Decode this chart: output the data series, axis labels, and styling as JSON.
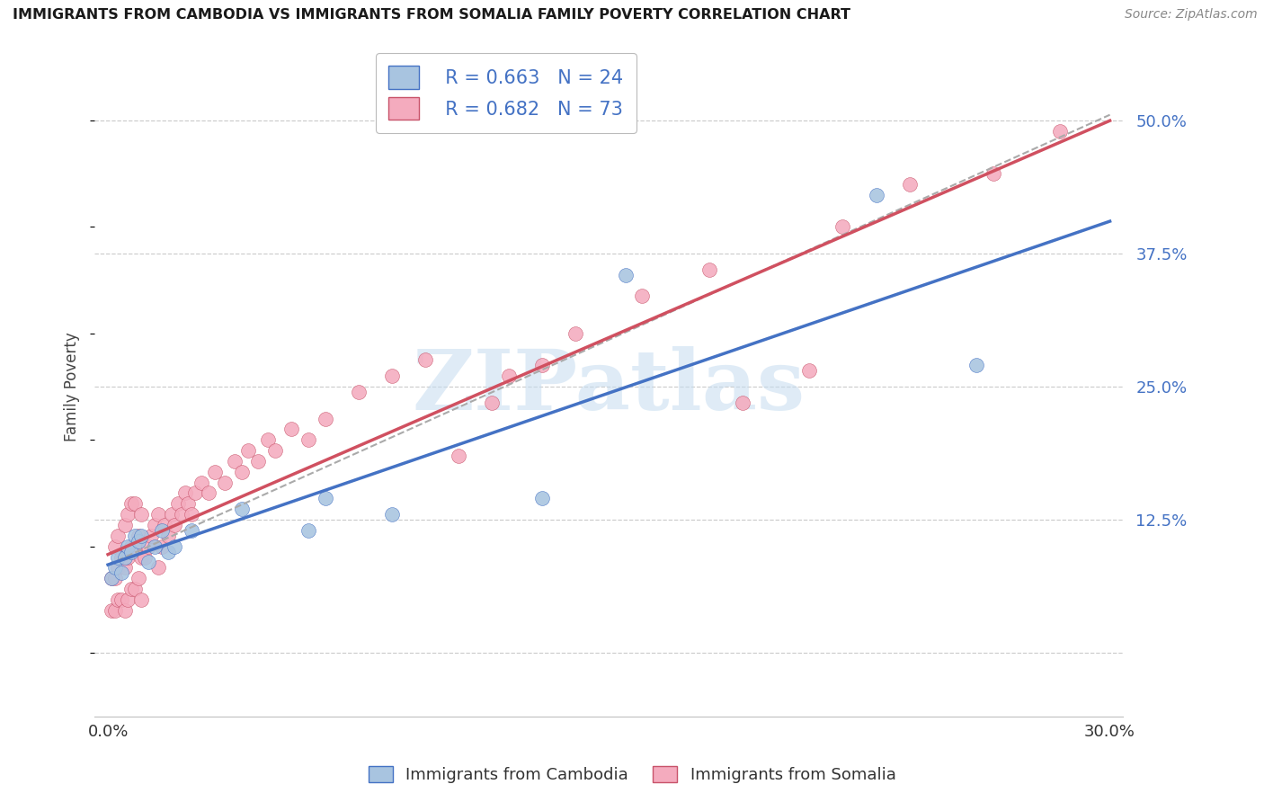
{
  "title": "IMMIGRANTS FROM CAMBODIA VS IMMIGRANTS FROM SOMALIA FAMILY POVERTY CORRELATION CHART",
  "source": "Source: ZipAtlas.com",
  "ylabel": "Family Poverty",
  "xlim": [
    0.0,
    0.3
  ],
  "ylim_lo": -0.06,
  "ylim_hi": 0.56,
  "ytick_values": [
    0.0,
    0.125,
    0.25,
    0.375,
    0.5
  ],
  "ytick_labels": [
    "",
    "12.5%",
    "25.0%",
    "37.5%",
    "50.0%"
  ],
  "legend_labels": [
    "Immigrants from Cambodia",
    "Immigrants from Somalia"
  ],
  "r_cambodia": 0.663,
  "n_cambodia": 24,
  "r_somalia": 0.682,
  "n_somalia": 73,
  "color_cambodia_fill": "#A8C4E0",
  "color_cambodia_edge": "#4472C4",
  "color_somalia_fill": "#F4ABBE",
  "color_somalia_edge": "#C8536A",
  "line_color_cambodia": "#4472C4",
  "line_color_somalia": "#D05060",
  "dash_line_color": "#AAAAAA",
  "watermark_text": "ZIPatlas",
  "watermark_color": "#C5DCF0",
  "cam_x": [
    0.001,
    0.002,
    0.003,
    0.004,
    0.005,
    0.006,
    0.007,
    0.008,
    0.009,
    0.01,
    0.012,
    0.014,
    0.016,
    0.018,
    0.02,
    0.025,
    0.04,
    0.06,
    0.065,
    0.085,
    0.13,
    0.155,
    0.23,
    0.26
  ],
  "cam_y": [
    0.07,
    0.08,
    0.09,
    0.075,
    0.09,
    0.1,
    0.095,
    0.11,
    0.105,
    0.11,
    0.085,
    0.1,
    0.115,
    0.095,
    0.1,
    0.115,
    0.135,
    0.115,
    0.145,
    0.13,
    0.145,
    0.355,
    0.43,
    0.27
  ],
  "som_x": [
    0.001,
    0.001,
    0.002,
    0.002,
    0.002,
    0.003,
    0.003,
    0.003,
    0.004,
    0.004,
    0.005,
    0.005,
    0.005,
    0.006,
    0.006,
    0.006,
    0.007,
    0.007,
    0.007,
    0.008,
    0.008,
    0.008,
    0.009,
    0.009,
    0.01,
    0.01,
    0.01,
    0.011,
    0.012,
    0.013,
    0.014,
    0.015,
    0.015,
    0.016,
    0.017,
    0.018,
    0.019,
    0.02,
    0.021,
    0.022,
    0.023,
    0.024,
    0.025,
    0.026,
    0.028,
    0.03,
    0.032,
    0.035,
    0.038,
    0.04,
    0.042,
    0.045,
    0.048,
    0.05,
    0.055,
    0.06,
    0.065,
    0.075,
    0.085,
    0.095,
    0.105,
    0.115,
    0.12,
    0.13,
    0.14,
    0.16,
    0.18,
    0.19,
    0.21,
    0.22,
    0.24,
    0.265,
    0.285
  ],
  "som_y": [
    0.04,
    0.07,
    0.04,
    0.07,
    0.1,
    0.05,
    0.08,
    0.11,
    0.05,
    0.09,
    0.04,
    0.08,
    0.12,
    0.05,
    0.09,
    0.13,
    0.06,
    0.1,
    0.14,
    0.06,
    0.1,
    0.14,
    0.07,
    0.11,
    0.05,
    0.09,
    0.13,
    0.09,
    0.1,
    0.11,
    0.12,
    0.08,
    0.13,
    0.1,
    0.12,
    0.11,
    0.13,
    0.12,
    0.14,
    0.13,
    0.15,
    0.14,
    0.13,
    0.15,
    0.16,
    0.15,
    0.17,
    0.16,
    0.18,
    0.17,
    0.19,
    0.18,
    0.2,
    0.19,
    0.21,
    0.2,
    0.22,
    0.245,
    0.26,
    0.275,
    0.185,
    0.235,
    0.26,
    0.27,
    0.3,
    0.335,
    0.36,
    0.235,
    0.265,
    0.4,
    0.44,
    0.45,
    0.49
  ],
  "title_fontsize": 11.5,
  "source_fontsize": 10,
  "tick_fontsize": 13,
  "ytick_color": "#4472C4",
  "xtick_color": "#333333"
}
